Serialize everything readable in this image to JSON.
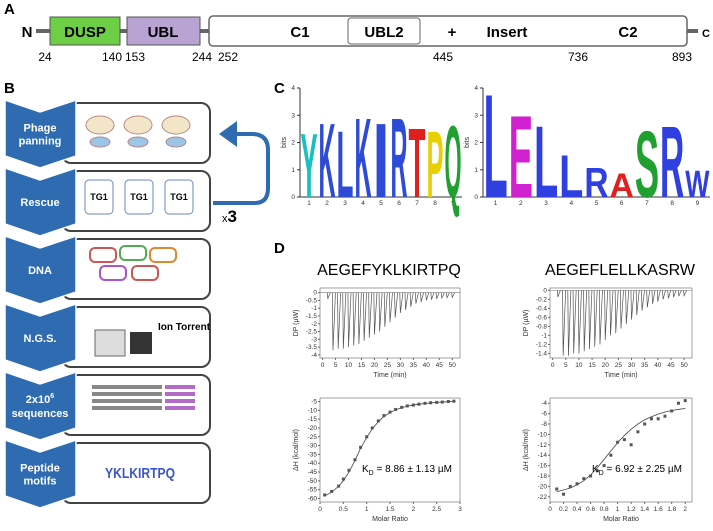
{
  "panel_a": {
    "label": "A",
    "n_term": "N",
    "c_term": "C",
    "domains": [
      {
        "name": "DUSP",
        "color": "#6ccf46"
      },
      {
        "name": "UBL",
        "color": "#b9a3d3"
      }
    ],
    "catalytic": [
      "C1",
      "UBL2",
      "+",
      "Insert",
      "C2"
    ],
    "positions": [
      24,
      140,
      153,
      244,
      252,
      445,
      736,
      893
    ]
  },
  "panel_b": {
    "label": "B",
    "color": "#2e6bb0",
    "steps": [
      [
        "Phage",
        "panning"
      ],
      [
        "Rescue"
      ],
      [
        "DNA"
      ],
      [
        "N.G.S."
      ],
      {
        "base": "2x10",
        "sup": "6",
        "rest": "sequences"
      },
      [
        "Peptide",
        "motifs"
      ]
    ],
    "cell": "TG1",
    "instrument": "Ion Torrent",
    "motif": "YKLKIRTPQ",
    "repeat": {
      "prefix": "x",
      "count": "3"
    }
  },
  "panel_c": {
    "label": "C",
    "logos": [
      {
        "ylabel": "bits",
        "ylim": [
          0,
          4
        ],
        "yticks": [
          0,
          1,
          2,
          3,
          4
        ],
        "positions": [
          1,
          2,
          3,
          4,
          5,
          6,
          7,
          8,
          9
        ],
        "letters": [
          "Y",
          "K",
          "L",
          "K",
          "I",
          "R",
          "T",
          "P",
          "Q"
        ],
        "heights": [
          2.4,
          2.8,
          2.5,
          3.0,
          2.8,
          3.0,
          2.6,
          2.5,
          2.7
        ],
        "colors": [
          "#18c0c0",
          "#2e4bd8",
          "#2e4bd8",
          "#2e4bd8",
          "#2e4bd8",
          "#2e4bd8",
          "#e02020",
          "#e8d000",
          "#20a030"
        ]
      },
      {
        "ylabel": "bits",
        "ylim": [
          0,
          4
        ],
        "yticks": [
          0,
          1,
          2,
          3,
          4
        ],
        "positions": [
          1,
          2,
          3,
          4,
          5,
          6,
          7,
          8,
          9
        ],
        "letters": [
          "L",
          "E",
          "L",
          "L",
          "R",
          "A",
          "S",
          "R",
          "W"
        ],
        "heights": [
          3.9,
          3.1,
          2.7,
          1.6,
          1.1,
          0.9,
          2.5,
          2.7,
          1.0
        ],
        "colors": [
          "#3040e0",
          "#d020d0",
          "#3040e0",
          "#3040e0",
          "#3040e0",
          "#e02020",
          "#20a030",
          "#3040e0",
          "#3040e0"
        ]
      }
    ]
  },
  "panel_d": {
    "label": "D",
    "itc": [
      {
        "title": "AEGEFYKLKIRTPQ",
        "thermogram": {
          "xlabel": "Time (min)",
          "ylabel": "DP (µW)",
          "xlim": [
            -1,
            53
          ],
          "ylim": [
            -4.2,
            0.3
          ],
          "xticks": [
            0,
            5,
            10,
            15,
            20,
            25,
            30,
            35,
            40,
            45,
            50
          ],
          "yticks": [
            0,
            -0.5,
            -1,
            -1.5,
            -2,
            -2.5,
            -3,
            -3.5,
            -4
          ],
          "times": [
            2,
            4,
            6,
            8,
            10,
            12,
            14,
            16,
            18,
            20,
            22,
            24,
            26,
            28,
            30,
            32,
            34,
            36,
            38,
            40,
            42,
            44,
            46,
            48,
            50
          ],
          "peaks": [
            -0.4,
            -3.7,
            -3.6,
            -3.6,
            -3.5,
            -3.4,
            -3.3,
            -3.1,
            -2.9,
            -2.7,
            -2.5,
            -2.2,
            -1.9,
            -1.6,
            -1.3,
            -1.1,
            -0.9,
            -0.7,
            -0.6,
            -0.5,
            -0.45,
            -0.4,
            -0.35,
            -0.32,
            -0.3
          ]
        },
        "binding": {
          "xlabel": "Molar Ratio",
          "ylabel": "ΔH (kcal/mol)",
          "xlim": [
            0,
            3
          ],
          "ylim": [
            -62,
            -3
          ],
          "xticks": [
            0,
            0.5,
            1,
            1.5,
            2,
            2.5,
            3
          ],
          "yticks": [
            -5,
            -10,
            -15,
            -20,
            -25,
            -30,
            -35,
            -40,
            -45,
            -50,
            -55,
            -60
          ],
          "x": [
            0.1,
            0.25,
            0.4,
            0.5,
            0.62,
            0.75,
            0.87,
            1.0,
            1.12,
            1.25,
            1.37,
            1.5,
            1.62,
            1.75,
            1.87,
            2.0,
            2.12,
            2.25,
            2.37,
            2.5,
            2.62,
            2.75,
            2.87
          ],
          "y": [
            -58,
            -56,
            -53,
            -49,
            -44,
            -38,
            -31,
            -25,
            -20,
            -16,
            -13,
            -11,
            -9.5,
            -8.3,
            -7.5,
            -7,
            -6.5,
            -6,
            -5.7,
            -5.5,
            -5.3,
            -5,
            -4.8
          ],
          "fit": [
            -58.5,
            -56.5,
            -53,
            -50,
            -45,
            -38.5,
            -31.5,
            -25.5,
            -20.5,
            -16.5,
            -13.5,
            -11.3,
            -9.7,
            -8.5,
            -7.6,
            -7,
            -6.5,
            -6.1,
            -5.8,
            -5.5,
            -5.3,
            -5.1,
            -5
          ],
          "kd": {
            "symbol": "K",
            "subscript": "D",
            "text": " = 8.86 ± 1.13 µM"
          }
        }
      },
      {
        "title": "AEGEFLELLKASRW",
        "thermogram": {
          "xlabel": "Time (min)",
          "ylabel": "DP (µW)",
          "xlim": [
            -1,
            53
          ],
          "ylim": [
            -1.5,
            0.05
          ],
          "xticks": [
            0,
            5,
            10,
            15,
            20,
            25,
            30,
            35,
            40,
            45,
            50
          ],
          "yticks": [
            0,
            -0.2,
            -0.4,
            -0.6,
            -0.8,
            -1,
            -1.2,
            -1.4
          ],
          "times": [
            2,
            4,
            6,
            8,
            10,
            12,
            14,
            16,
            18,
            20,
            22,
            24,
            26,
            28,
            30,
            32,
            34,
            36,
            38,
            40,
            42,
            44,
            46,
            48,
            50
          ],
          "peaks": [
            -0.15,
            -1.45,
            -1.45,
            -1.4,
            -1.4,
            -1.35,
            -1.3,
            -1.25,
            -1.2,
            -1.1,
            -1.0,
            -0.95,
            -0.85,
            -0.75,
            -0.65,
            -0.55,
            -0.45,
            -0.38,
            -0.3,
            -0.25,
            -0.2,
            -0.18,
            -0.15,
            -0.13,
            -0.12
          ]
        },
        "binding": {
          "xlabel": "Molar Ratio",
          "ylabel": "ΔH (kcal/mol)",
          "xlim": [
            0,
            2.1
          ],
          "ylim": [
            -23,
            -3
          ],
          "xticks": [
            0,
            0.2,
            0.4,
            0.6,
            0.8,
            1,
            1.2,
            1.4,
            1.6,
            1.8,
            2
          ],
          "yticks": [
            -4,
            -6,
            -8,
            -10,
            -12,
            -14,
            -16,
            -18,
            -20,
            -22
          ],
          "x": [
            0.1,
            0.2,
            0.3,
            0.4,
            0.5,
            0.6,
            0.7,
            0.8,
            0.9,
            1.0,
            1.1,
            1.2,
            1.3,
            1.4,
            1.5,
            1.6,
            1.7,
            1.8,
            1.9,
            2.0
          ],
          "y": [
            -20.5,
            -21.5,
            -20,
            -19.5,
            -18.5,
            -18,
            -17,
            -16,
            -14,
            -11.5,
            -11,
            -12,
            -9.5,
            -8,
            -7,
            -7,
            -6.5,
            -5.5,
            -4,
            -3.5
          ],
          "fit": [
            -21,
            -20.7,
            -20.3,
            -19.7,
            -18.9,
            -17.8,
            -16.4,
            -14.8,
            -13.2,
            -11.6,
            -10.2,
            -9,
            -8,
            -7.2,
            -6.6,
            -6.1,
            -5.7,
            -5.4,
            -5.2,
            -5
          ],
          "kd": {
            "symbol": "K",
            "subscript": "D",
            "text": " = 6.92 ± 2.25 µM"
          }
        }
      }
    ]
  }
}
